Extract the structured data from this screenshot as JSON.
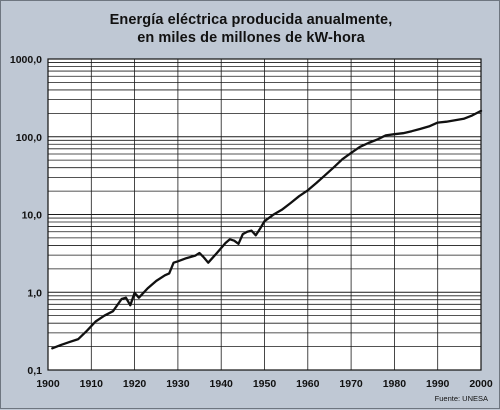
{
  "chart_data": {
    "type": "line",
    "title": "Energía eléctrica producida anualmente,",
    "subtitle": "en miles de millones de kW-hora",
    "yscale": "log",
    "ylim": [
      0.1,
      1000
    ],
    "xlim": [
      1900,
      2000
    ],
    "grid": true,
    "x_ticks": [
      "1900",
      "1910",
      "1920",
      "1930",
      "1940",
      "1950",
      "1960",
      "1970",
      "1980",
      "1990",
      "2000"
    ],
    "y_ticks": [
      {
        "value": 0.1,
        "label": "0,1"
      },
      {
        "value": 1,
        "label": "1,0"
      },
      {
        "value": 10,
        "label": "10,0"
      },
      {
        "value": 100,
        "label": "100,0"
      },
      {
        "value": 1000,
        "label": "1000,0"
      }
    ],
    "source": "Fuente: UNESA",
    "line_color": "#111111",
    "series": [
      {
        "x": [
          1901,
          1903,
          1905,
          1907,
          1909,
          1911,
          1913,
          1915,
          1917,
          1918,
          1919,
          1920,
          1921,
          1923,
          1925,
          1927,
          1928,
          1929,
          1930,
          1932,
          1934,
          1935,
          1936,
          1937,
          1939,
          1941,
          1942,
          1943,
          1944,
          1945,
          1946,
          1947,
          1948,
          1949,
          1950,
          1952,
          1954,
          1956,
          1958,
          1960,
          1962,
          1964,
          1966,
          1968,
          1970,
          1972,
          1974,
          1976,
          1978,
          1980,
          1982,
          1984,
          1986,
          1988,
          1990,
          1992,
          1994,
          1996,
          1998,
          2000
        ],
        "y": [
          0.19,
          0.21,
          0.23,
          0.25,
          0.32,
          0.42,
          0.5,
          0.57,
          0.82,
          0.85,
          0.68,
          0.98,
          0.85,
          1.12,
          1.4,
          1.65,
          1.75,
          2.4,
          2.5,
          2.75,
          2.95,
          3.2,
          2.8,
          2.4,
          3.2,
          4.3,
          4.8,
          4.6,
          4.2,
          5.6,
          6.0,
          6.2,
          5.4,
          6.6,
          8.2,
          9.9,
          11.5,
          14.0,
          17.2,
          20.5,
          25.5,
          32.0,
          40.5,
          51.5,
          62.0,
          74.0,
          83.0,
          92.0,
          104.0,
          108.0,
          111.0,
          118.0,
          126.0,
          136.0,
          152.0,
          156.0,
          163.0,
          170.0,
          188.0,
          215.0
        ]
      }
    ]
  }
}
